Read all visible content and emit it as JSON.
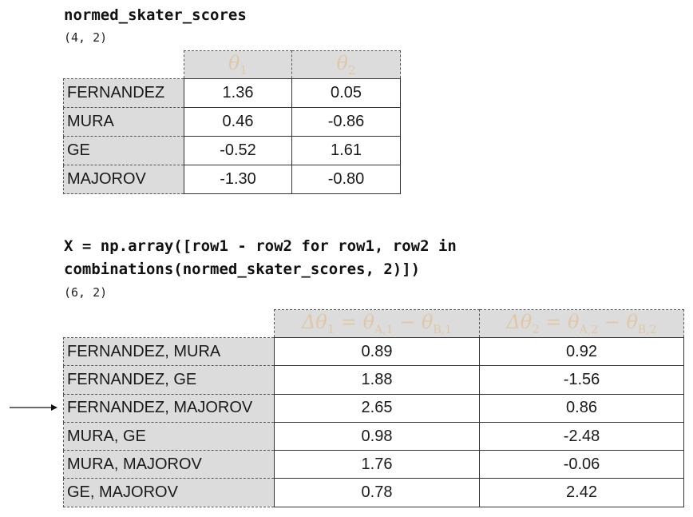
{
  "block1": {
    "code": "normed_skater_scores",
    "shape": "(4, 2)",
    "columns": [
      {
        "symbol": "θ",
        "sub": "1"
      },
      {
        "symbol": "θ",
        "sub": "2"
      }
    ],
    "rows": [
      {
        "index": "FERNANDEZ",
        "values": [
          "1.36",
          "0.05"
        ]
      },
      {
        "index": "MURA",
        "values": [
          "0.46",
          "-0.86"
        ]
      },
      {
        "index": "GE",
        "values": [
          "-0.52",
          "1.61"
        ]
      },
      {
        "index": "MAJOROV",
        "values": [
          "-1.30",
          "-0.80"
        ]
      }
    ]
  },
  "block2": {
    "code_line1": "X = np.array([row1 - row2 for row1, row2 in",
    "code_line2": "combinations(normed_skater_scores, 2)])",
    "shape": "(6, 2)",
    "columns": [
      {
        "delta": "Δθ",
        "dsub": "1",
        "eq": " = ",
        "a": "θ",
        "asub": "A,1",
        "minus": " − ",
        "b": "θ",
        "bsub": "B,1"
      },
      {
        "delta": "Δθ",
        "dsub": "2",
        "eq": " = ",
        "a": "θ",
        "asub": "A,2",
        "minus": " − ",
        "b": "θ",
        "bsub": "B,2"
      }
    ],
    "rows": [
      {
        "index": "FERNANDEZ, MURA",
        "values": [
          "0.89",
          "0.92"
        ]
      },
      {
        "index": "FERNANDEZ, GE",
        "values": [
          "1.88",
          "-1.56"
        ]
      },
      {
        "index": "FERNANDEZ, MAJOROV",
        "values": [
          "2.65",
          "0.86"
        ]
      },
      {
        "index": "MURA, GE",
        "values": [
          "0.98",
          "-2.48"
        ]
      },
      {
        "index": "MURA, MAJOROV",
        "values": [
          "1.76",
          "-0.06"
        ]
      },
      {
        "index": "GE, MAJOROV",
        "values": [
          "0.78",
          "2.42"
        ]
      }
    ],
    "highlighted_row": 2
  },
  "colors": {
    "header_text": "#e0c7a8",
    "index_bg": "#dcdcdc",
    "border": "#333333"
  }
}
